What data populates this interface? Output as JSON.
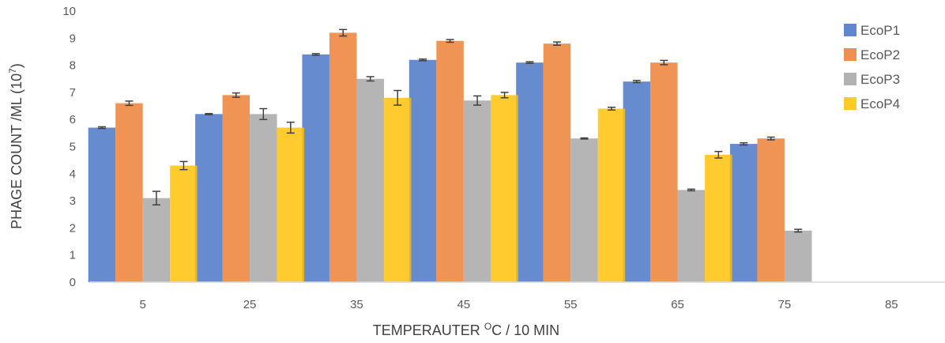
{
  "chart_data": {
    "type": "bar",
    "title": "",
    "xlabel_main": "TEMPERAUTER ",
    "xlabel_sup": "O",
    "xlabel_rest": "C / 10 MIN",
    "ylabel_main": "PHAGE COUNT /ML (10",
    "ylabel_sup": "7",
    "ylabel_rest": ")",
    "ylim": [
      0,
      10
    ],
    "yticks": [
      "0",
      "1",
      "2",
      "3",
      "4",
      "5",
      "6",
      "7",
      "8",
      "9",
      "10"
    ],
    "categories": [
      "5",
      "25",
      "35",
      "45",
      "55",
      "65",
      "75",
      "85"
    ],
    "legend_position": "top-right",
    "grid": false,
    "series": [
      {
        "name": "EcoP1",
        "color": "#4472C4",
        "values": [
          5.7,
          6.2,
          8.4,
          8.2,
          8.1,
          7.4,
          5.1,
          0
        ],
        "errors": [
          0.03,
          0.02,
          0.03,
          0.03,
          0.03,
          0.04,
          0.04,
          0
        ]
      },
      {
        "name": "EcoP2",
        "color": "#ED7D31",
        "values": [
          6.6,
          6.9,
          9.2,
          8.9,
          8.8,
          8.1,
          5.3,
          0
        ],
        "errors": [
          0.08,
          0.08,
          0.12,
          0.05,
          0.06,
          0.08,
          0.05,
          0
        ]
      },
      {
        "name": "EcoP3",
        "color": "#A5A5A5",
        "values": [
          3.1,
          6.2,
          7.5,
          6.7,
          5.3,
          3.4,
          1.9,
          0
        ],
        "errors": [
          0.25,
          0.2,
          0.08,
          0.17,
          0.02,
          0.03,
          0.05,
          0
        ]
      },
      {
        "name": "EcoP4",
        "color": "#FFC000",
        "values": [
          4.3,
          5.7,
          6.8,
          6.9,
          6.4,
          4.7,
          0,
          0
        ],
        "errors": [
          0.15,
          0.2,
          0.27,
          0.1,
          0.05,
          0.12,
          0,
          0
        ]
      }
    ]
  }
}
